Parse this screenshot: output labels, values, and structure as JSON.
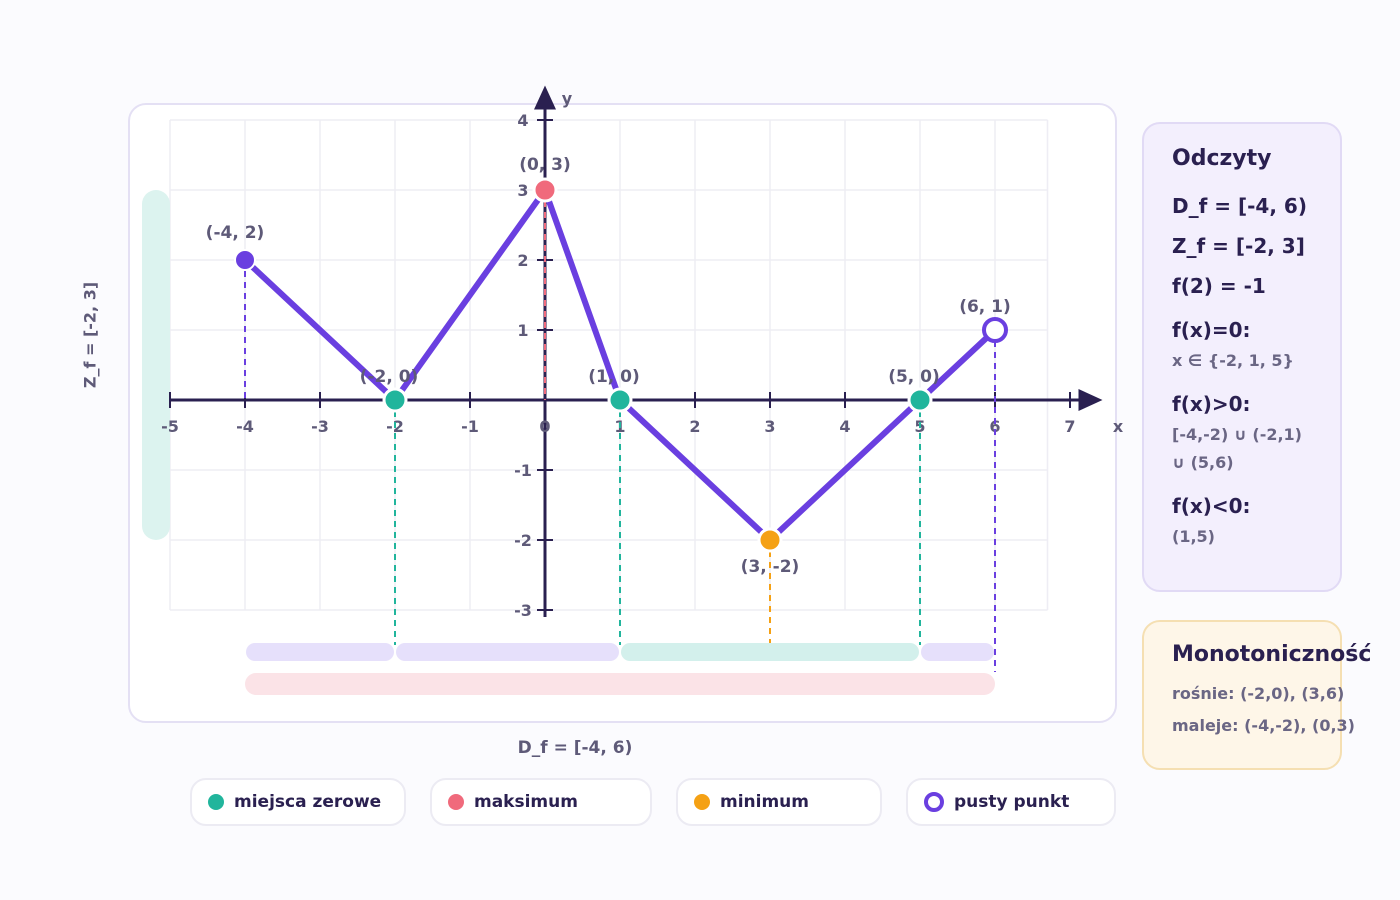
{
  "chart_data": {
    "type": "line",
    "xlabel": "x",
    "ylabel": "y",
    "xlim": [
      -5,
      7
    ],
    "ylim": [
      -3,
      4
    ],
    "x_ticks": [
      "-5",
      "-4",
      "-3",
      "-2",
      "-1",
      "0",
      "1",
      "2",
      "3",
      "4",
      "5",
      "6",
      "7"
    ],
    "y_ticks": [
      "-3",
      "-2",
      "-1",
      "1",
      "2",
      "3",
      "4"
    ],
    "grid": true,
    "series": [
      {
        "x": [
          -4,
          -2,
          0,
          1,
          3,
          5,
          6
        ],
        "y": [
          2,
          0,
          3,
          0,
          -2,
          0,
          1
        ],
        "color": "#6a3fe0"
      }
    ],
    "points": [
      {
        "x": -4,
        "y": 2,
        "label": "(-4, 2)",
        "kind": "endpoint",
        "color": "#6a3fe0"
      },
      {
        "x": -2,
        "y": 0,
        "label": "(-2, 0)",
        "kind": "zero",
        "color": "#21b59c"
      },
      {
        "x": 0,
        "y": 3,
        "label": "(0, 3)",
        "kind": "maximum",
        "color": "#f06a7c"
      },
      {
        "x": 1,
        "y": 0,
        "label": "(1, 0)",
        "kind": "zero",
        "color": "#21b59c"
      },
      {
        "x": 3,
        "y": -2,
        "label": "(3, -2)",
        "kind": "minimum",
        "color": "#f5a114"
      },
      {
        "x": 5,
        "y": 0,
        "label": "(5, 0)",
        "kind": "zero",
        "color": "#21b59c"
      },
      {
        "x": 6,
        "y": 1,
        "label": "(6, 1)",
        "kind": "open",
        "color": "#6a3fe0"
      }
    ],
    "sign_bars": [
      {
        "from": -4,
        "to": -2,
        "color": "#e6e0fb"
      },
      {
        "from": -2,
        "to": 1,
        "color": "#e6e0fb"
      },
      {
        "from": 1,
        "to": 5,
        "color": "#d3f0ec"
      },
      {
        "from": 5,
        "to": 6,
        "color": "#e6e0fb"
      }
    ],
    "domain_bar": {
      "from": -4,
      "to": 6,
      "color": "#fbe3e7"
    },
    "range_bar": {
      "from": -2,
      "to": 3,
      "color": "#dcf3ef"
    }
  },
  "labels": {
    "domain": "D_f = [-4, 6)",
    "range": "Z_f = [-2, 3]"
  },
  "legend": [
    {
      "label": "miejsca zerowe",
      "color": "#21b59c",
      "hollow": false
    },
    {
      "label": "maksimum",
      "color": "#f06a7c",
      "hollow": false
    },
    {
      "label": "minimum",
      "color": "#f5a114",
      "hollow": false
    },
    {
      "label": "pusty punkt",
      "color": "#6a3fe0",
      "hollow": true
    }
  ],
  "readings": {
    "title": "Odczyty",
    "domain": "D_f = [-4, 6)",
    "range": "Z_f = [-2, 3]",
    "f2": "f(2) = -1",
    "zero_title": "f(x)=0:",
    "zero_value": "x ∈ {-2, 1, 5}",
    "pos_title": "f(x)>0:",
    "pos_value_1": "[-4,-2) ∪ (-2,1)",
    "pos_value_2": "∪ (5,6)",
    "neg_title": "f(x)<0:",
    "neg_value": "(1,5)"
  },
  "monotonicity": {
    "title": "Monotoniczność",
    "increasing": "rośnie: (-2,0), (3,6)",
    "decreasing": "maleje: (-4,-2), (0,3)"
  }
}
